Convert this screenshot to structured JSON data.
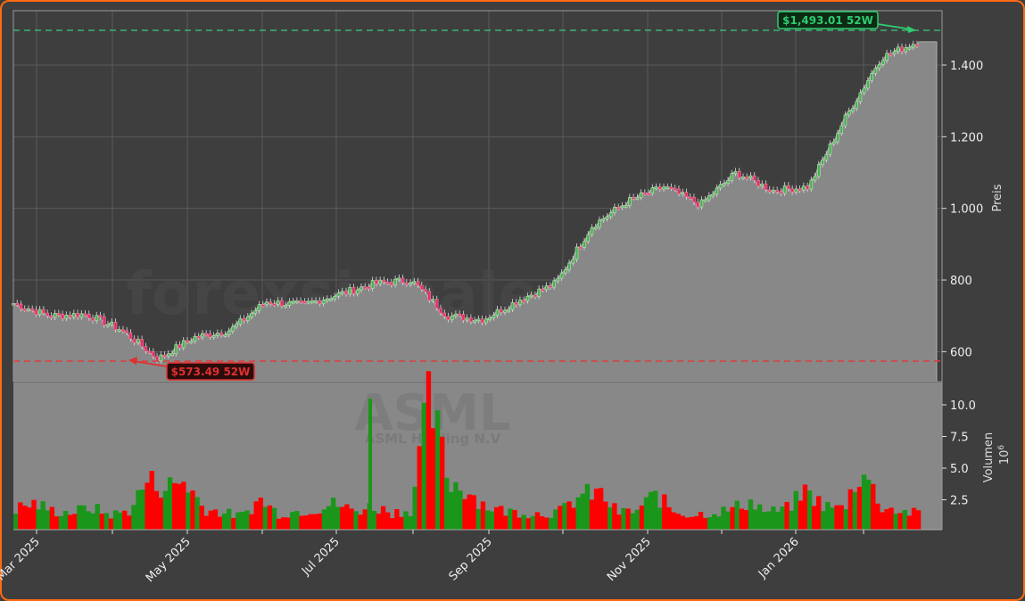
{
  "chart_data": {
    "type": "candlestick+volume",
    "ticker": "ASML",
    "company": "ASML Holding N.V",
    "watermark": "forexsignale.trade",
    "price_axis": {
      "label": "Preis",
      "ticks": [
        "600",
        "800",
        "1.000",
        "1.200",
        "1.400"
      ],
      "tick_values": [
        600,
        800,
        1000,
        1200,
        1400
      ],
      "range": [
        550,
        1500
      ]
    },
    "volume_axis": {
      "label": "Volumen",
      "multiplier": "10^6",
      "ticks": [
        "2.5",
        "5.0",
        "7.5",
        "10.0"
      ],
      "tick_values": [
        2.5,
        5.0,
        7.5,
        10.0
      ]
    },
    "x_axis": {
      "ticks": [
        "Mar 2025",
        "May 2025",
        "Jul 2025",
        "Sep 2025",
        "Nov 2025",
        "Jan 2026"
      ]
    },
    "annotations": {
      "high_52w": {
        "label": "$1,493.01 52W",
        "value": 1493.01,
        "color": "#2ecc71"
      },
      "low_52w": {
        "label": "$573.49 52W",
        "value": 573.49,
        "color": "#e03030"
      }
    },
    "price_series_approx": {
      "dates": [
        "2025-02-17",
        "2025-03-01",
        "2025-03-15",
        "2025-04-01",
        "2025-04-07",
        "2025-04-15",
        "2025-05-01",
        "2025-05-15",
        "2025-06-01",
        "2025-06-15",
        "2025-07-01",
        "2025-07-15",
        "2025-08-01",
        "2025-08-15",
        "2025-09-01",
        "2025-09-15",
        "2025-10-01",
        "2025-10-15",
        "2025-11-01",
        "2025-11-15",
        "2025-12-01",
        "2025-12-15",
        "2026-01-01",
        "2026-01-15",
        "2026-02-01",
        "2026-02-15"
      ],
      "close": [
        735,
        700,
        705,
        660,
        580,
        640,
        660,
        740,
        730,
        760,
        790,
        800,
        700,
        690,
        745,
        790,
        950,
        1020,
        1060,
        1010,
        1100,
        1050,
        1060,
        1250,
        1420,
        1465
      ]
    },
    "volume_series_approx_millions": {
      "values": [
        1.8,
        2.2,
        1.6,
        1.5,
        1.9,
        1.3,
        1.6,
        4.0,
        3.5,
        4.0,
        1.8,
        1.5,
        1.2,
        2.5,
        1.4,
        1.6,
        1.8,
        2.2,
        1.6,
        2.0,
        1.5,
        1.7,
        10.5,
        4.0,
        3.3,
        2.0,
        1.6,
        1.5,
        1.4,
        1.6,
        2.8,
        3.1,
        1.5,
        1.6,
        2.9,
        1.6,
        1.3,
        1.5,
        1.7,
        2.4,
        1.5,
        1.8,
        3.2,
        2.0,
        1.8,
        5.0,
        2.0,
        1.6,
        1.4
      ]
    },
    "colors": {
      "up": "#1a961a",
      "down": "#ff0000",
      "area": "#888888",
      "background": "#3e3e3e",
      "border": "#ff6a13"
    }
  }
}
